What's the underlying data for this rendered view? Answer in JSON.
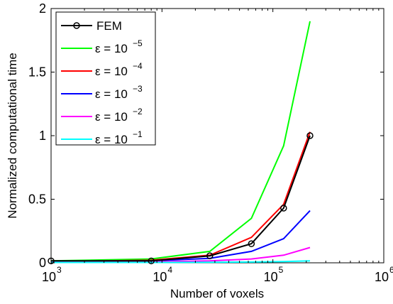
{
  "chart_data": {
    "type": "line",
    "xscale": "log",
    "xlim": [
      1000,
      1000000
    ],
    "ylim": [
      0,
      2
    ],
    "xlabel": "Number of voxels",
    "ylabel": "Normalized computational time",
    "x_ticks": [
      {
        "value": 1000,
        "base": "10",
        "exp": "3"
      },
      {
        "value": 10000,
        "base": "10",
        "exp": "4"
      },
      {
        "value": 100000,
        "base": "10",
        "exp": "5"
      },
      {
        "value": 1000000,
        "base": "10",
        "exp": "6"
      }
    ],
    "y_ticks": [
      {
        "value": 0,
        "label": "0"
      },
      {
        "value": 0.5,
        "label": "0.5"
      },
      {
        "value": 1,
        "label": "1"
      },
      {
        "value": 1.5,
        "label": "1.5"
      },
      {
        "value": 2,
        "label": "2"
      }
    ],
    "grid": false,
    "legend_position": "top-left",
    "x": [
      1000,
      8000,
      27000,
      64000,
      125000,
      216000
    ],
    "series": [
      {
        "name": "FEM",
        "color": "#000000",
        "marker": "circle",
        "values": [
          0.015,
          0.015,
          0.055,
          0.15,
          0.43,
          1.0
        ]
      },
      {
        "name_prefix": "ε = 10",
        "name_exp": "−5",
        "color": "#00ff00",
        "marker": "none",
        "values": [
          0.015,
          0.03,
          0.09,
          0.35,
          0.92,
          1.9
        ]
      },
      {
        "name_prefix": "ε = 10",
        "name_exp": "−4",
        "color": "#ff0000",
        "marker": "none",
        "values": [
          0.01,
          0.02,
          0.06,
          0.2,
          0.46,
          1.03
        ]
      },
      {
        "name_prefix": "ε = 10",
        "name_exp": "−3",
        "color": "#0000ff",
        "marker": "none",
        "values": [
          0.01,
          0.015,
          0.035,
          0.09,
          0.19,
          0.41
        ]
      },
      {
        "name_prefix": "ε = 10",
        "name_exp": "−2",
        "color": "#ff00ff",
        "marker": "none",
        "values": [
          0.005,
          0.008,
          0.015,
          0.03,
          0.06,
          0.12
        ]
      },
      {
        "name_prefix": "ε = 10",
        "name_exp": "−1",
        "color": "#00ffff",
        "marker": "none",
        "values": [
          0.003,
          0.003,
          0.004,
          0.006,
          0.01,
          0.015
        ]
      }
    ]
  }
}
